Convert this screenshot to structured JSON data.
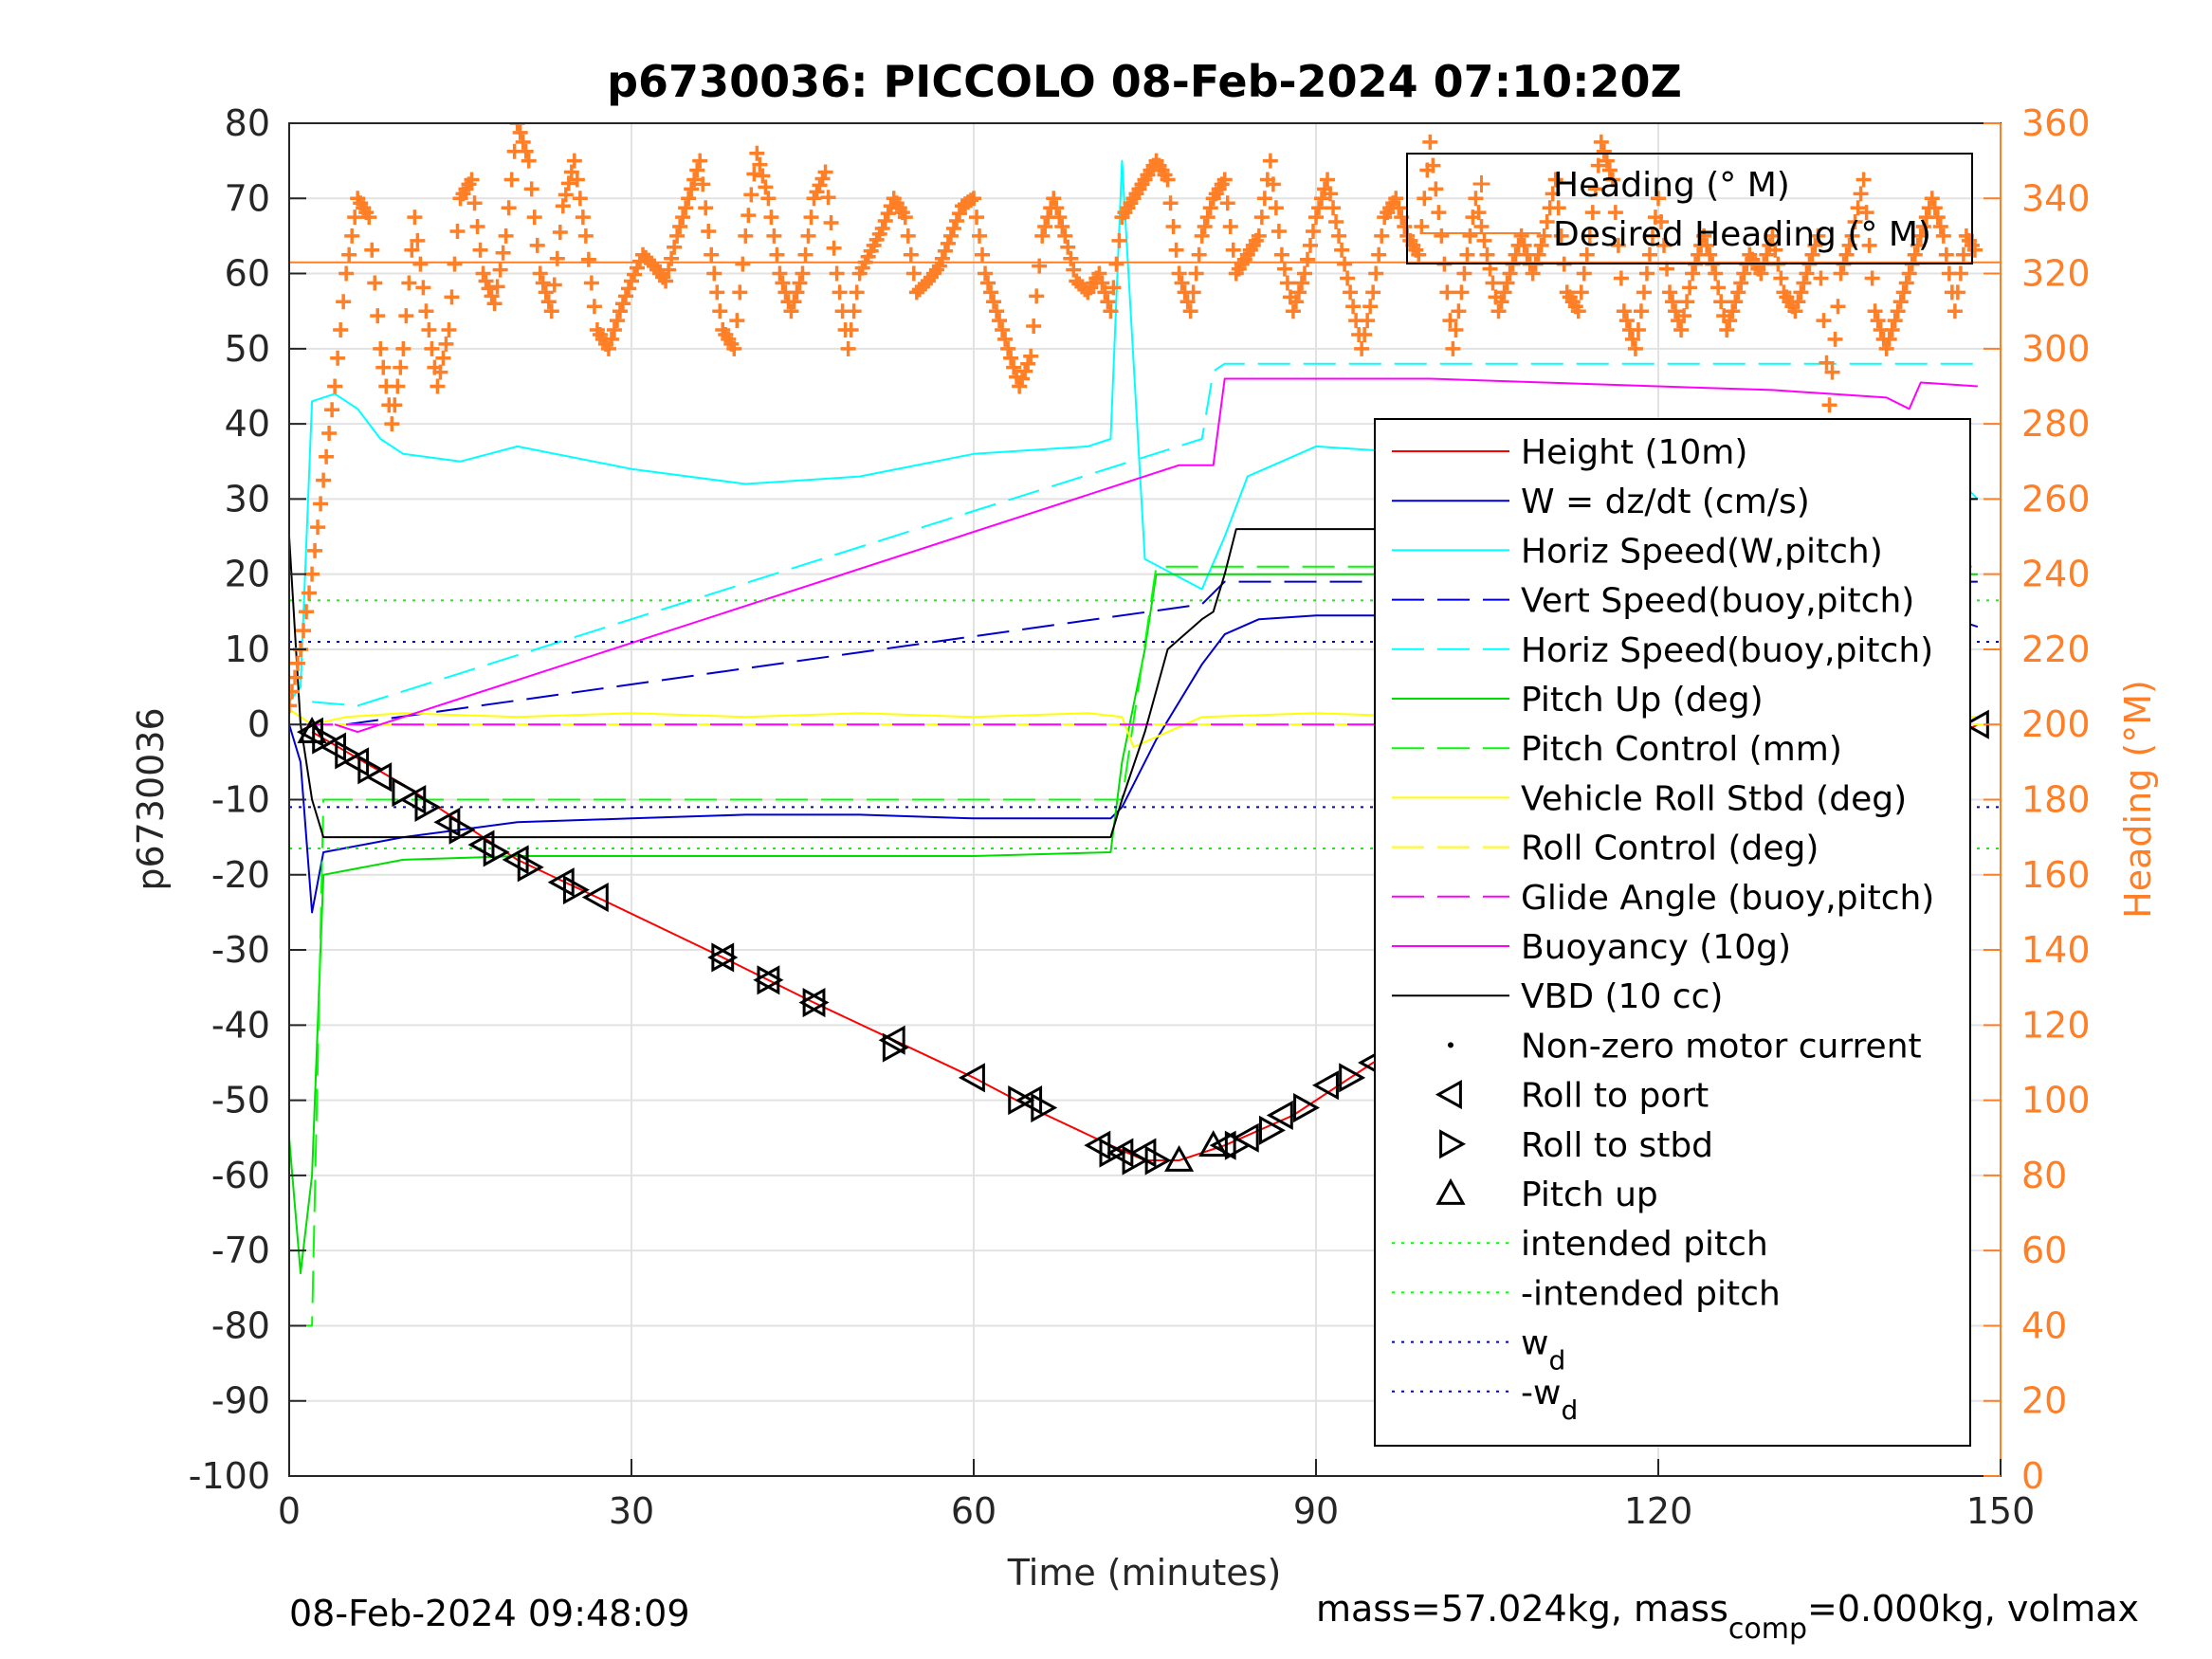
{
  "chart_data": {
    "type": "line",
    "title": "p6730036: PICCOLO 08-Feb-2024 07:10:20Z",
    "xlabel": "Time (minutes)",
    "ylabel": "p6730036",
    "ylabel_right": "Heading (°M)",
    "xlim": [
      0,
      150
    ],
    "ylim": [
      -100,
      80
    ],
    "ylim_right": [
      0,
      360
    ],
    "xticks": [
      "0",
      "30",
      "60",
      "90",
      "120",
      "150"
    ],
    "yticks": [
      "80",
      "70",
      "60",
      "50",
      "40",
      "30",
      "20",
      "10",
      "0",
      "-10",
      "-20",
      "-30",
      "-40",
      "-50",
      "-60",
      "-70",
      "-80",
      "-90",
      "-100"
    ],
    "yticks_right": [
      "360",
      "340",
      "320",
      "300",
      "280",
      "260",
      "240",
      "220",
      "200",
      "180",
      "160",
      "140",
      "120",
      "100",
      "80",
      "60",
      "40",
      "20",
      "0"
    ],
    "grid": true,
    "footer_left": "08-Feb-2024 09:48:09",
    "footer_right": "mass=57.024kg, mass",
    "footer_right_sub": "comp",
    "footer_right_tail": "=0.000kg, volmax",
    "legend_heading": {
      "placement": "top-right",
      "entries": [
        {
          "label": "Heading (° M)",
          "color": "#FF7F27",
          "style": "plus"
        },
        {
          "label": "Desired Heading (° M)",
          "color": "#FF7F27",
          "style": "solid"
        }
      ]
    },
    "legend_main": {
      "placement": "right",
      "entries": [
        {
          "label": "Height (10m)",
          "color": "#FF0000",
          "style": "solid"
        },
        {
          "label": "W = dz/dt (cm/s)",
          "color": "#0000CC",
          "style": "solid"
        },
        {
          "label": "Horiz Speed(W,pitch)",
          "color": "#00FFFF",
          "style": "solid"
        },
        {
          "label": "Vert Speed(buoy,pitch)",
          "color": "#0000CC",
          "style": "dash"
        },
        {
          "label": "Horiz Speed(buoy,pitch)",
          "color": "#00FFFF",
          "style": "dash"
        },
        {
          "label": "Pitch Up (deg)",
          "color": "#00DD00",
          "style": "solid"
        },
        {
          "label": "Pitch Control (mm)",
          "color": "#00FF00",
          "style": "dash"
        },
        {
          "label": "Vehicle Roll Stbd (deg)",
          "color": "#FFFF00",
          "style": "solid"
        },
        {
          "label": "Roll Control (deg)",
          "color": "#FFFF00",
          "style": "dash"
        },
        {
          "label": "Glide Angle (buoy,pitch)",
          "color": "#FF00FF",
          "style": "dash"
        },
        {
          "label": "Buoyancy (10g)",
          "color": "#FF00FF",
          "style": "solid"
        },
        {
          "label": "VBD (10 cc)",
          "color": "#000000",
          "style": "solid"
        },
        {
          "label": "Non-zero motor current",
          "color": "#000000",
          "style": "dot"
        },
        {
          "label": "Roll to port",
          "color": "#000000",
          "style": "tri-left"
        },
        {
          "label": "Roll to stbd",
          "color": "#000000",
          "style": "tri-right"
        },
        {
          "label": "Pitch up",
          "color": "#000000",
          "style": "tri-up"
        },
        {
          "label": "intended pitch",
          "color": "#00FF00",
          "style": "dotted"
        },
        {
          "label": "-intended pitch",
          "color": "#00FF00",
          "style": "dotted"
        },
        {
          "label": "w",
          "sub": "d",
          "color": "#0000CC",
          "style": "dotted"
        },
        {
          "label": "-w",
          "sub": "d",
          "color": "#0000CC",
          "style": "dotted"
        }
      ]
    },
    "series": [
      {
        "name": "Height (10m)",
        "color": "#FF0000",
        "style": "solid",
        "x": [
          2,
          10,
          20,
          27,
          38,
          46,
          53,
          60,
          65,
          72,
          75,
          78,
          82,
          88,
          95,
          100,
          110,
          117,
          124,
          130,
          137,
          142,
          148
        ],
        "y": [
          -1,
          -8,
          -18,
          -23,
          -31,
          -37,
          -42,
          -47,
          -51,
          -56,
          -58,
          -58,
          -56,
          -52,
          -45,
          -41,
          -33,
          -27,
          -21,
          -15,
          -10,
          -5,
          0
        ]
      },
      {
        "name": "W = dz/dt (cm/s)",
        "color": "#0000CC",
        "style": "solid",
        "x": [
          0,
          1,
          2,
          3,
          10,
          20,
          30,
          40,
          50,
          60,
          72,
          73,
          76,
          80,
          82,
          85,
          90,
          100,
          110,
          120,
          130,
          140,
          146,
          148
        ],
        "y": [
          0,
          -5,
          -25,
          -17,
          -15,
          -13,
          -12.5,
          -12,
          -12,
          -12.5,
          -12.5,
          -11,
          -2,
          8,
          12,
          14,
          14.5,
          14.5,
          14,
          13.5,
          12.5,
          12.5,
          14,
          13
        ]
      },
      {
        "name": "Horiz Speed(W,pitch)",
        "color": "#00FFFF",
        "style": "solid",
        "x": [
          0,
          1,
          2,
          4,
          6,
          8,
          10,
          15,
          20,
          30,
          40,
          50,
          60,
          70,
          72,
          73,
          75,
          80,
          82,
          84,
          90,
          100,
          110,
          120,
          125,
          130,
          135,
          140,
          143,
          146,
          148
        ],
        "y": [
          3,
          5,
          43,
          44,
          42,
          38,
          36,
          35,
          37,
          34,
          32,
          33,
          36,
          37,
          38,
          75,
          22,
          18,
          25,
          33,
          37,
          36,
          35,
          37,
          39,
          36,
          30,
          27,
          29,
          33,
          30
        ]
      },
      {
        "name": "Vert Speed(buoy,pitch)",
        "color": "#0000CC",
        "style": "dash",
        "x": [
          5,
          80,
          82,
          148
        ],
        "y": [
          0,
          16,
          19,
          19
        ]
      },
      {
        "name": "Horiz Speed(buoy,pitch)",
        "color": "#00FFFF",
        "style": "dash",
        "x": [
          2,
          6,
          80,
          81,
          82,
          148
        ],
        "y": [
          3,
          2.5,
          38,
          47,
          48,
          48
        ]
      },
      {
        "name": "Pitch Up (deg)",
        "color": "#00DD00",
        "style": "solid",
        "x": [
          0,
          1,
          2,
          3,
          10,
          20,
          30,
          40,
          50,
          60,
          72,
          73,
          75,
          76,
          148
        ],
        "y": [
          -55,
          -73,
          -60,
          -20,
          -18,
          -17.5,
          -17.5,
          -17.5,
          -17.5,
          -17.5,
          -17,
          -5,
          10,
          20,
          20
        ]
      },
      {
        "name": "Pitch Control (mm)",
        "color": "#00FF00",
        "style": "dash",
        "x": [
          0,
          2,
          3,
          73,
          76,
          148
        ],
        "y": [
          -80,
          -80,
          -10,
          -10,
          21,
          21
        ]
      },
      {
        "name": "Vehicle Roll Stbd (deg)",
        "color": "#FFFF00",
        "style": "solid",
        "x": [
          0,
          2,
          5,
          10,
          20,
          30,
          40,
          50,
          60,
          70,
          73,
          74,
          80,
          90,
          100,
          110,
          120,
          130,
          140,
          148
        ],
        "y": [
          2,
          0,
          1,
          1.5,
          1,
          1.5,
          1,
          1.5,
          1,
          1.5,
          1,
          -3,
          1,
          1.5,
          1,
          1.5,
          1,
          1.5,
          1,
          1
        ]
      },
      {
        "name": "Roll Control (deg)",
        "color": "#FFFF00",
        "style": "dash",
        "x": [
          0,
          150
        ],
        "y": [
          0,
          0
        ]
      },
      {
        "name": "Glide Angle (buoy,pitch)",
        "color": "#FF00FF",
        "style": "dash",
        "x": [
          1,
          148
        ],
        "y": [
          0,
          0
        ]
      },
      {
        "name": "Buoyancy (10g)",
        "color": "#FF00FF",
        "style": "solid",
        "x": [
          4,
          6,
          8,
          78,
          81,
          82,
          90,
          100,
          110,
          120,
          130,
          140,
          142,
          143,
          148
        ],
        "y": [
          0,
          -1,
          0,
          34.5,
          34.5,
          46,
          46,
          46,
          45.5,
          45,
          44.5,
          43.5,
          42,
          45.5,
          45
        ]
      },
      {
        "name": "VBD (10 cc)",
        "color": "#000000",
        "style": "solid",
        "x": [
          0,
          1,
          2,
          3,
          72,
          73,
          75,
          77,
          80,
          81,
          82,
          83,
          84,
          143,
          144,
          148
        ],
        "y": [
          25,
          0,
          -10,
          -15,
          -15,
          -10,
          -1,
          10,
          14,
          15,
          20,
          26,
          26,
          26,
          30,
          30
        ]
      },
      {
        "name": "Heading (° M)",
        "color": "#FF7F27",
        "style": "plus",
        "axis": "right",
        "x": [
          0,
          1,
          2,
          3,
          4,
          5,
          6,
          7,
          8,
          9,
          10,
          11,
          12,
          13,
          14,
          15,
          16,
          17,
          18,
          19,
          20,
          21,
          22,
          23,
          24,
          25,
          26,
          27,
          28,
          29,
          30,
          31,
          32,
          33,
          34,
          35,
          36,
          37,
          38,
          39,
          40,
          41,
          42,
          43,
          44,
          45,
          46,
          47,
          48,
          49,
          50,
          51,
          52,
          53,
          54,
          55,
          56,
          57,
          58,
          59,
          60,
          61,
          62,
          63,
          64,
          65,
          66,
          67,
          68,
          69,
          70,
          71,
          72,
          73,
          74,
          75,
          76,
          77,
          78,
          79,
          80,
          81,
          82,
          83,
          84,
          85,
          86,
          87,
          88,
          89,
          90,
          91,
          92,
          93,
          94,
          95,
          96,
          97,
          98,
          99,
          100,
          101,
          102,
          103,
          104,
          105,
          106,
          107,
          108,
          109,
          110,
          111,
          112,
          113,
          114,
          115,
          116,
          117,
          118,
          119,
          120,
          121,
          122,
          123,
          124,
          125,
          126,
          127,
          128,
          129,
          130,
          131,
          132,
          133,
          134,
          135,
          136,
          137,
          138,
          139,
          140,
          141,
          142,
          143,
          144,
          145,
          146,
          147,
          148
        ],
        "y": [
          205,
          220,
          240,
          265,
          290,
          320,
          340,
          335,
          300,
          280,
          300,
          335,
          310,
          290,
          305,
          340,
          345,
          320,
          312,
          330,
          360,
          350,
          320,
          310,
          338,
          350,
          330,
          305,
          300,
          310,
          318,
          325,
          322,
          318,
          330,
          340,
          350,
          325,
          305,
          300,
          330,
          352,
          340,
          320,
          310,
          320,
          340,
          347,
          320,
          300,
          320,
          326,
          332,
          340,
          335,
          315,
          318,
          322,
          330,
          338,
          340,
          320,
          310,
          300,
          290,
          298,
          330,
          340,
          330,
          318,
          315,
          320,
          310,
          335,
          340,
          345,
          350,
          345,
          320,
          310,
          330,
          340,
          345,
          320,
          325,
          330,
          350,
          325,
          310,
          320,
          335,
          345,
          330,
          315,
          300,
          315,
          335,
          340,
          330,
          325,
          355,
          330,
          300,
          320,
          340,
          325,
          310,
          320,
          330,
          320,
          330,
          345,
          315,
          310,
          330,
          355,
          345,
          310,
          300,
          320,
          340,
          315,
          305,
          320,
          330,
          320,
          305,
          315,
          325,
          320,
          330,
          315,
          310,
          320,
          330,
          285,
          320,
          330,
          345,
          310,
          300,
          310,
          320,
          330,
          340,
          330,
          310,
          330,
          325
        ]
      },
      {
        "name": "Desired Heading (° M)",
        "color": "#FF7F27",
        "style": "solid",
        "axis": "right",
        "x": [
          0,
          150
        ],
        "y": [
          323,
          323
        ]
      },
      {
        "name": "intended pitch",
        "color": "#00FF00",
        "style": "dotted",
        "x": [
          0,
          150
        ],
        "y": [
          16.5,
          16.5
        ]
      },
      {
        "name": "-intended pitch",
        "color": "#00FF00",
        "style": "dotted",
        "x": [
          0,
          150
        ],
        "y": [
          -16.5,
          -16.5
        ]
      },
      {
        "name": "w_d",
        "color": "#0000CC",
        "style": "dotted",
        "x": [
          0,
          150
        ],
        "y": [
          11,
          11
        ]
      },
      {
        "name": "-w_d",
        "color": "#0000CC",
        "style": "dotted",
        "x": [
          0,
          150
        ],
        "y": [
          -11,
          -11
        ]
      }
    ],
    "markers": {
      "roll_port": {
        "x": [
          2,
          4,
          6,
          8,
          11,
          14,
          17,
          20,
          24,
          27,
          38,
          42,
          46,
          53,
          60,
          65,
          71,
          73,
          75,
          82,
          84,
          87,
          91,
          95,
          99,
          110,
          117,
          124,
          130,
          133,
          138,
          141,
          145,
          148
        ],
        "y": [
          -1,
          -3,
          -5,
          -7,
          -10,
          -13,
          -16,
          -18,
          -21,
          -23,
          -31,
          -34,
          -37,
          -42,
          -47,
          -50,
          -56,
          -57,
          -57,
          -56,
          -55,
          -52,
          -48,
          -45,
          -41,
          -33,
          -27,
          -20,
          -14,
          -12,
          -8,
          -6,
          -2,
          0
        ]
      },
      "roll_stbd": {
        "x": [
          3,
          5,
          7,
          10,
          12,
          15,
          18,
          21,
          25,
          38,
          42,
          46,
          53,
          64,
          66,
          72,
          74,
          76,
          83,
          86,
          89,
          93,
          97,
          101,
          111,
          118,
          125,
          131,
          134,
          136,
          140,
          143,
          146
        ],
        "y": [
          -2,
          -4,
          -6,
          -9,
          -11,
          -14,
          -17,
          -19,
          -22,
          -31,
          -34,
          -37,
          -43,
          -50,
          -51,
          -57,
          -58,
          -58,
          -56,
          -54,
          -51,
          -47,
          -44,
          -40,
          -33,
          -26,
          -20,
          -14,
          -11,
          -9,
          -7,
          -4,
          -2
        ]
      },
      "pitch_up": {
        "x": [
          2,
          78,
          81
        ],
        "y": [
          -1,
          -58,
          -56
        ]
      }
    }
  }
}
